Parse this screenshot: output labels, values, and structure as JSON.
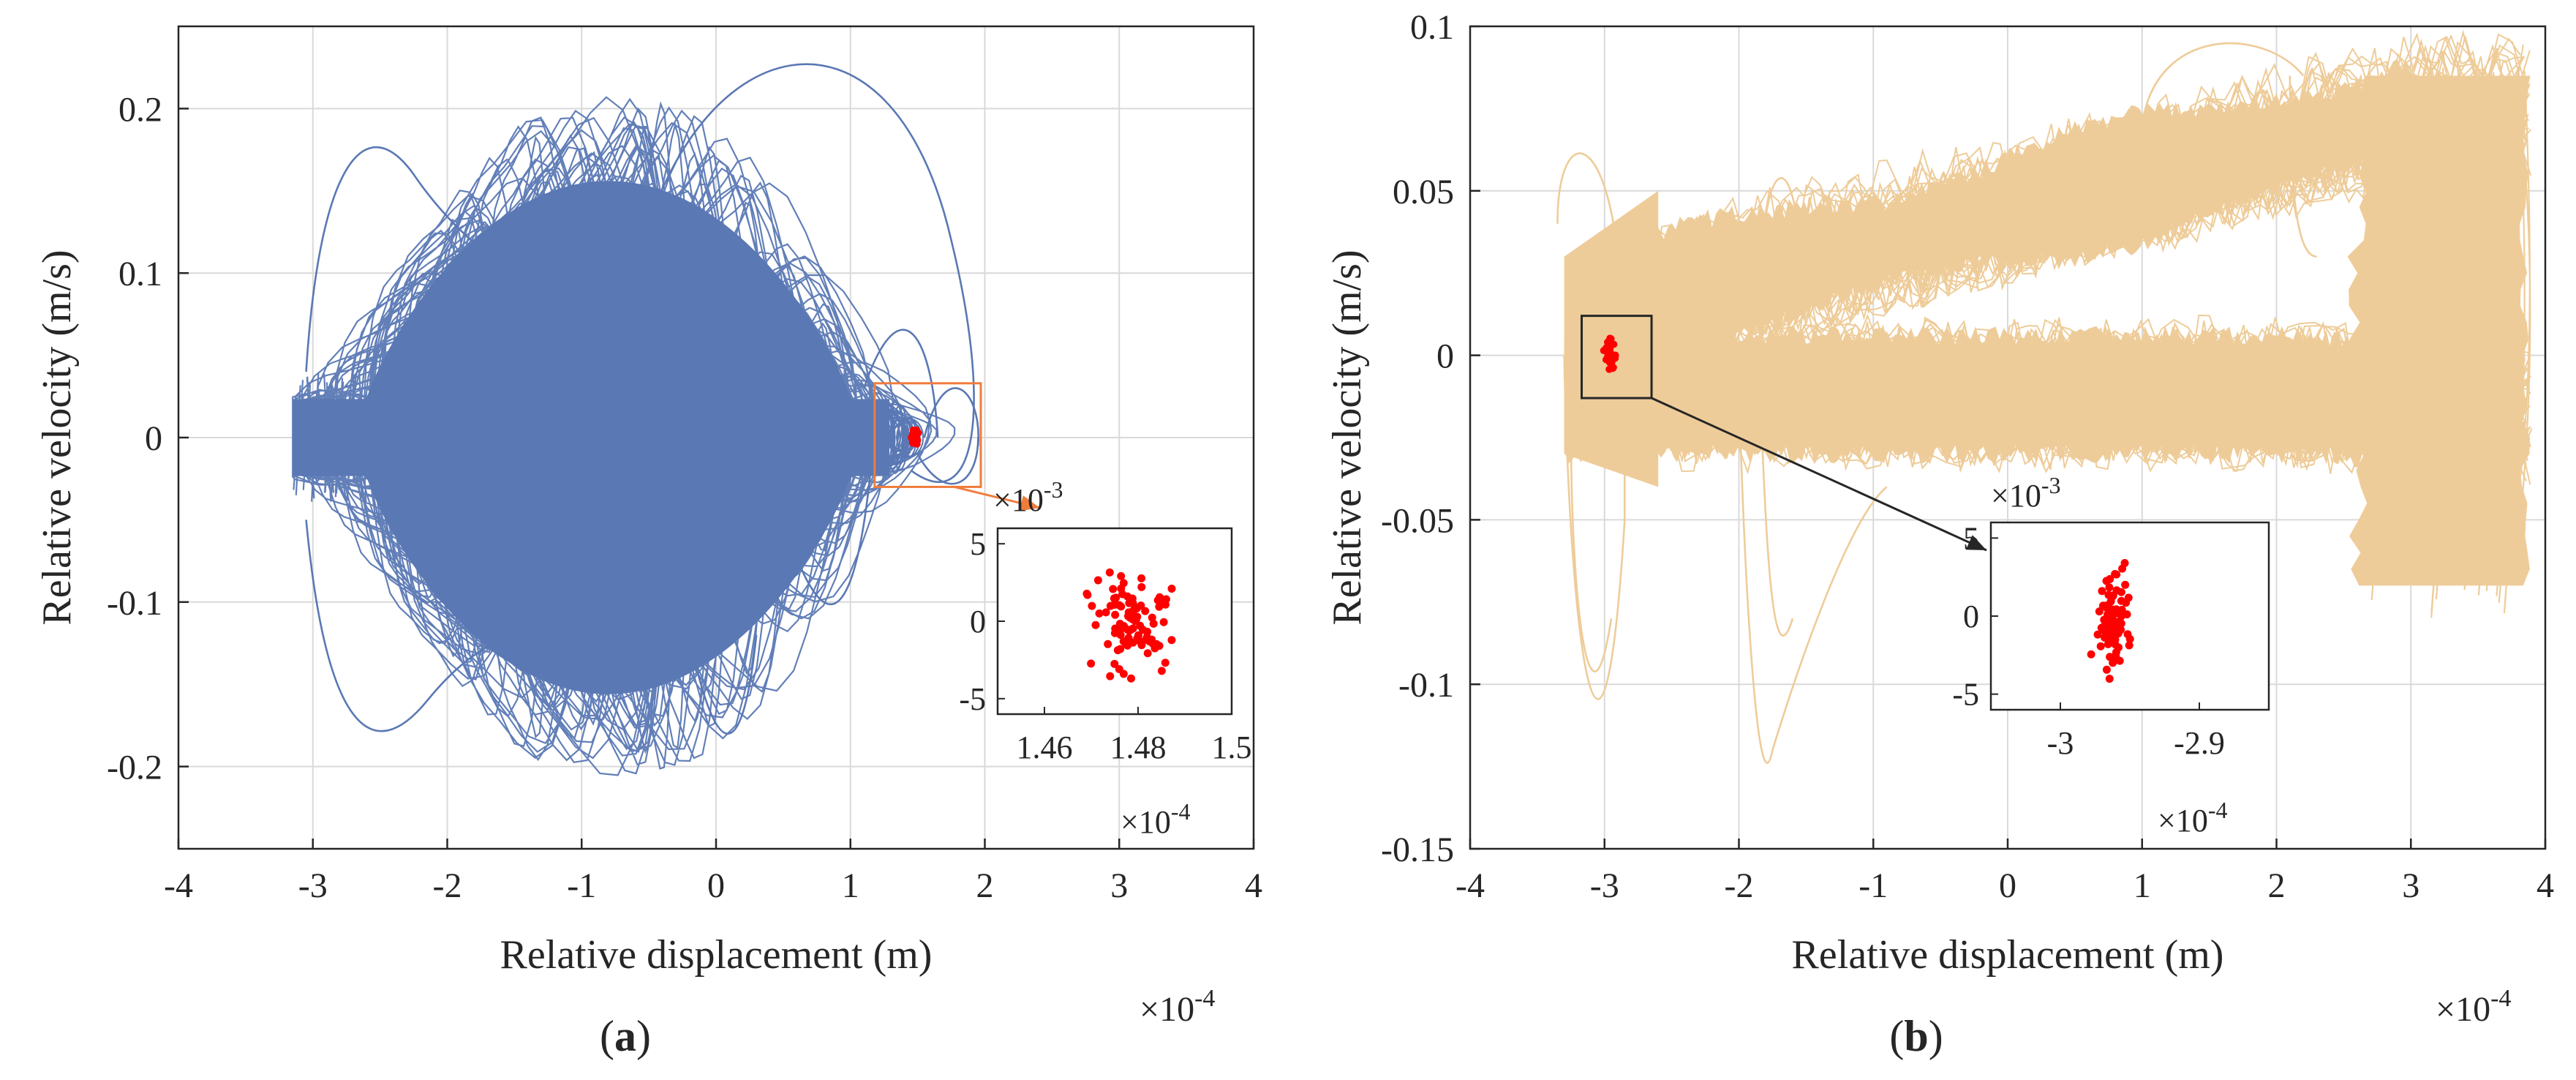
{
  "chart_data": [
    {
      "panel_label": "(a)",
      "panel_letter": "a",
      "type": "line",
      "xlabel": "Relative displacement (m)",
      "ylabel": "Relative velocity (m/s)",
      "x_multiplier": "×10^-4",
      "x_multiplier_base": "×10",
      "x_multiplier_exp": "-4",
      "xlim": [
        -4,
        4
      ],
      "ylim": [
        -0.25,
        0.25
      ],
      "xticks": [
        -4,
        -3,
        -2,
        -1,
        0,
        1,
        2,
        3,
        4
      ],
      "xtick_labels": [
        "-4",
        "-3",
        "-2",
        "-1",
        "0",
        "1",
        "2",
        "3",
        "4"
      ],
      "yticks": [
        -0.2,
        -0.1,
        0,
        0.1,
        0.2
      ],
      "ytick_labels": [
        "-0.2",
        "-0.1",
        "0",
        "0.1",
        "0.2"
      ],
      "grid": true,
      "series": [
        {
          "kind": "phase-trajectory",
          "color": "#5a78b4",
          "x_range": [
            -3.15,
            1.95
          ],
          "v_range": [
            -0.215,
            0.238
          ],
          "dense_core": {
            "x_center": -0.8,
            "x_half_width": 1.5,
            "v_extent": 0.17
          }
        },
        {
          "kind": "poincare-points",
          "color": "#ff0000",
          "x_center": 1.48,
          "v_center": 0
        }
      ],
      "zoom_box": {
        "x_range": [
          1.18,
          1.97
        ],
        "v_range": [
          -0.03,
          0.033
        ],
        "color": "#f07c3c"
      },
      "inset": {
        "xlim": [
          1.45,
          1.5
        ],
        "ylim": [
          -6,
          6
        ],
        "xticks": [
          1.46,
          1.48,
          1.5
        ],
        "xtick_labels": [
          "1.46",
          "1.48",
          "1.5"
        ],
        "yticks": [
          5,
          0,
          -5
        ],
        "ytick_labels": [
          "5",
          "0",
          "-5"
        ],
        "x_multiplier": "×10^-4",
        "x_multiplier_base": "×10",
        "x_multiplier_exp": "-4",
        "y_multiplier": "×10^-3",
        "y_multiplier_base": "×10",
        "y_multiplier_exp": "-3",
        "points_color": "#ff0000",
        "x_center": 1.479,
        "y_center": 0.0,
        "x_spread": 0.0045,
        "y_spread": 1.6
      }
    },
    {
      "panel_label": "(b)",
      "panel_letter": "b",
      "type": "line",
      "xlabel": "Relative displacement (m)",
      "ylabel": "Relative velocity (m/s)",
      "x_multiplier": "×10^-4",
      "x_multiplier_base": "×10",
      "x_multiplier_exp": "-4",
      "xlim": [
        -4,
        4
      ],
      "ylim": [
        -0.15,
        0.1
      ],
      "xticks": [
        -4,
        -3,
        -2,
        -1,
        0,
        1,
        2,
        3,
        4
      ],
      "xtick_labels": [
        "-4",
        "-3",
        "-2",
        "-1",
        "0",
        "1",
        "2",
        "3",
        "4"
      ],
      "yticks": [
        -0.15,
        -0.1,
        -0.05,
        0,
        0.05,
        0.1
      ],
      "ytick_labels": [
        "-0.15",
        "-0.1",
        "-0.05",
        "0",
        "0.05",
        "0.1"
      ],
      "grid": true,
      "series": [
        {
          "kind": "phase-trajectory",
          "color": "#eecc99",
          "x_range": [
            -3.4,
            3.9
          ],
          "v_range": [
            -0.127,
            0.095
          ]
        },
        {
          "kind": "poincare-points",
          "color": "#ff0000",
          "x_center": -2.96,
          "v_center": 0
        }
      ],
      "zoom_box": {
        "x_range": [
          -3.17,
          -2.65
        ],
        "v_range": [
          -0.013,
          0.012
        ],
        "color": "#262626"
      },
      "inset": {
        "xlim": [
          -3.05,
          -2.85
        ],
        "ylim": [
          -6,
          6
        ],
        "xticks": [
          -3,
          -2.9
        ],
        "xtick_labels": [
          "-3",
          "-2.9"
        ],
        "yticks": [
          5,
          0,
          -5
        ],
        "ytick_labels": [
          "5",
          "0",
          "-5"
        ],
        "x_multiplier": "×10^-4",
        "x_multiplier_base": "×10",
        "x_multiplier_exp": "-4",
        "y_multiplier": "×10^-3",
        "y_multiplier_base": "×10",
        "y_multiplier_exp": "-3",
        "points_color": "#ff0000",
        "x_center": -2.962,
        "y_center": -0.3,
        "x_spread": 0.006,
        "y_spread": 1.5
      }
    }
  ]
}
